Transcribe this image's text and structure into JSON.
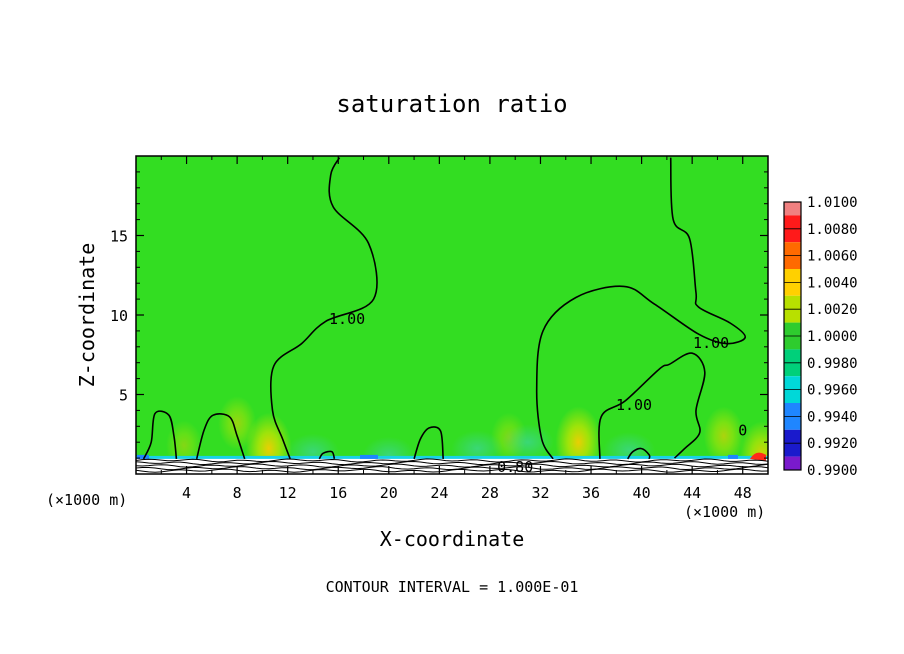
{
  "chart_data": {
    "type": "heatmap",
    "title": "saturation ratio",
    "xlabel": "X-coordinate",
    "ylabel": "Z-coordinate",
    "x_unit": "(×1000 m)",
    "xlim": [
      0,
      50
    ],
    "ylim": [
      0,
      20
    ],
    "x_ticks": [
      4,
      8,
      12,
      16,
      20,
      24,
      28,
      32,
      36,
      40,
      44,
      48
    ],
    "y_ticks": [
      5,
      10,
      15
    ],
    "footer": "CONTOUR INTERVAL = 1.000E-01",
    "contour_labels": [
      {
        "text": "1.00",
        "x": 16.7,
        "y": 9.8
      },
      {
        "text": "1.00",
        "x": 45.5,
        "y": 8.3
      },
      {
        "text": "1.00",
        "x": 39.4,
        "y": 4.4
      },
      {
        "text": "0",
        "x": 48.0,
        "y": 2.8
      },
      {
        "text": "0.80",
        "x": 30.0,
        "y": 0.5
      }
    ],
    "colorbar": {
      "levels": [
        "1.0100",
        "1.0080",
        "1.0060",
        "1.0040",
        "1.0020",
        "1.0000",
        "0.9980",
        "0.9960",
        "0.9940",
        "0.9920",
        "0.9900"
      ],
      "colors": [
        "#f08080",
        "#ff1a1a",
        "#ff6a00",
        "#ffd000",
        "#b8e000",
        "#2ecc2e",
        "#00d07a",
        "#00d8d8",
        "#1f86ff",
        "#1a1acc",
        "#7a1acc"
      ]
    },
    "field_color": "#33dd22",
    "contours": [
      {
        "id": "left-plume",
        "points": [
          [
            16.1,
            19.9
          ],
          [
            15.4,
            18.8
          ],
          [
            15.6,
            16.8
          ],
          [
            18.4,
            14.5
          ],
          [
            18.8,
            11.0
          ],
          [
            15.0,
            9.6
          ],
          [
            13.1,
            8.2
          ],
          [
            10.9,
            6.8
          ],
          [
            10.8,
            4.0
          ],
          [
            11.6,
            2.2
          ],
          [
            12.2,
            0.95
          ]
        ]
      },
      {
        "id": "right-plume",
        "points": [
          [
            42.3,
            19.9
          ],
          [
            42.5,
            16.0
          ],
          [
            43.8,
            14.8
          ],
          [
            44.3,
            11.4
          ],
          [
            44.5,
            10.5
          ],
          [
            47.0,
            9.5
          ],
          [
            48.2,
            8.6
          ],
          [
            46.7,
            8.2
          ],
          [
            44.5,
            8.8
          ],
          [
            41.0,
            10.7
          ],
          [
            38.6,
            11.8
          ],
          [
            34.8,
            11.1
          ],
          [
            32.2,
            9.0
          ],
          [
            31.7,
            5.3
          ],
          [
            32.1,
            2.2
          ],
          [
            33.0,
            0.95
          ]
        ]
      },
      {
        "id": "mid-plume",
        "points": [
          [
            36.7,
            0.95
          ],
          [
            36.8,
            3.6
          ],
          [
            38.7,
            4.6
          ],
          [
            41.4,
            6.6
          ],
          [
            42.2,
            6.9
          ],
          [
            44.0,
            7.6
          ],
          [
            45.0,
            6.4
          ],
          [
            44.3,
            4.0
          ],
          [
            44.6,
            2.6
          ],
          [
            43.4,
            1.6
          ],
          [
            42.6,
            1.0
          ]
        ]
      },
      {
        "id": "bump-1",
        "points": [
          [
            0.6,
            0.95
          ],
          [
            1.2,
            2.0
          ],
          [
            1.5,
            3.8
          ],
          [
            2.6,
            3.7
          ],
          [
            3.0,
            2.4
          ],
          [
            3.2,
            0.95
          ]
        ]
      },
      {
        "id": "bump-2",
        "points": [
          [
            4.8,
            0.95
          ],
          [
            5.4,
            2.8
          ],
          [
            6.1,
            3.7
          ],
          [
            7.4,
            3.6
          ],
          [
            8.0,
            2.4
          ],
          [
            8.6,
            0.95
          ]
        ]
      },
      {
        "id": "bump-3",
        "points": [
          [
            22.0,
            0.95
          ],
          [
            22.5,
            2.2
          ],
          [
            23.2,
            2.9
          ],
          [
            24.1,
            2.7
          ],
          [
            24.3,
            0.95
          ]
        ]
      },
      {
        "id": "bump-4",
        "points": [
          [
            38.9,
            0.95
          ],
          [
            39.3,
            1.4
          ],
          [
            40.0,
            1.6
          ],
          [
            40.6,
            1.2
          ],
          [
            40.6,
            0.95
          ]
        ]
      },
      {
        "id": "bump-5",
        "points": [
          [
            14.5,
            0.95
          ],
          [
            14.8,
            1.3
          ],
          [
            15.5,
            1.4
          ],
          [
            15.7,
            0.95
          ]
        ]
      }
    ],
    "plumes": [
      {
        "x": 10.5,
        "y": 1.6,
        "intensity": 0.9
      },
      {
        "x": 35.0,
        "y": 2.0,
        "intensity": 0.9
      },
      {
        "x": 46.5,
        "y": 2.4,
        "intensity": 0.6
      },
      {
        "x": 8.0,
        "y": 3.2,
        "intensity": 0.5
      },
      {
        "x": 29.5,
        "y": 2.3,
        "intensity": 0.4
      },
      {
        "x": 3.8,
        "y": 1.8,
        "intensity": 0.4
      },
      {
        "x": 49.5,
        "y": 1.2,
        "intensity": 0.8
      }
    ]
  }
}
